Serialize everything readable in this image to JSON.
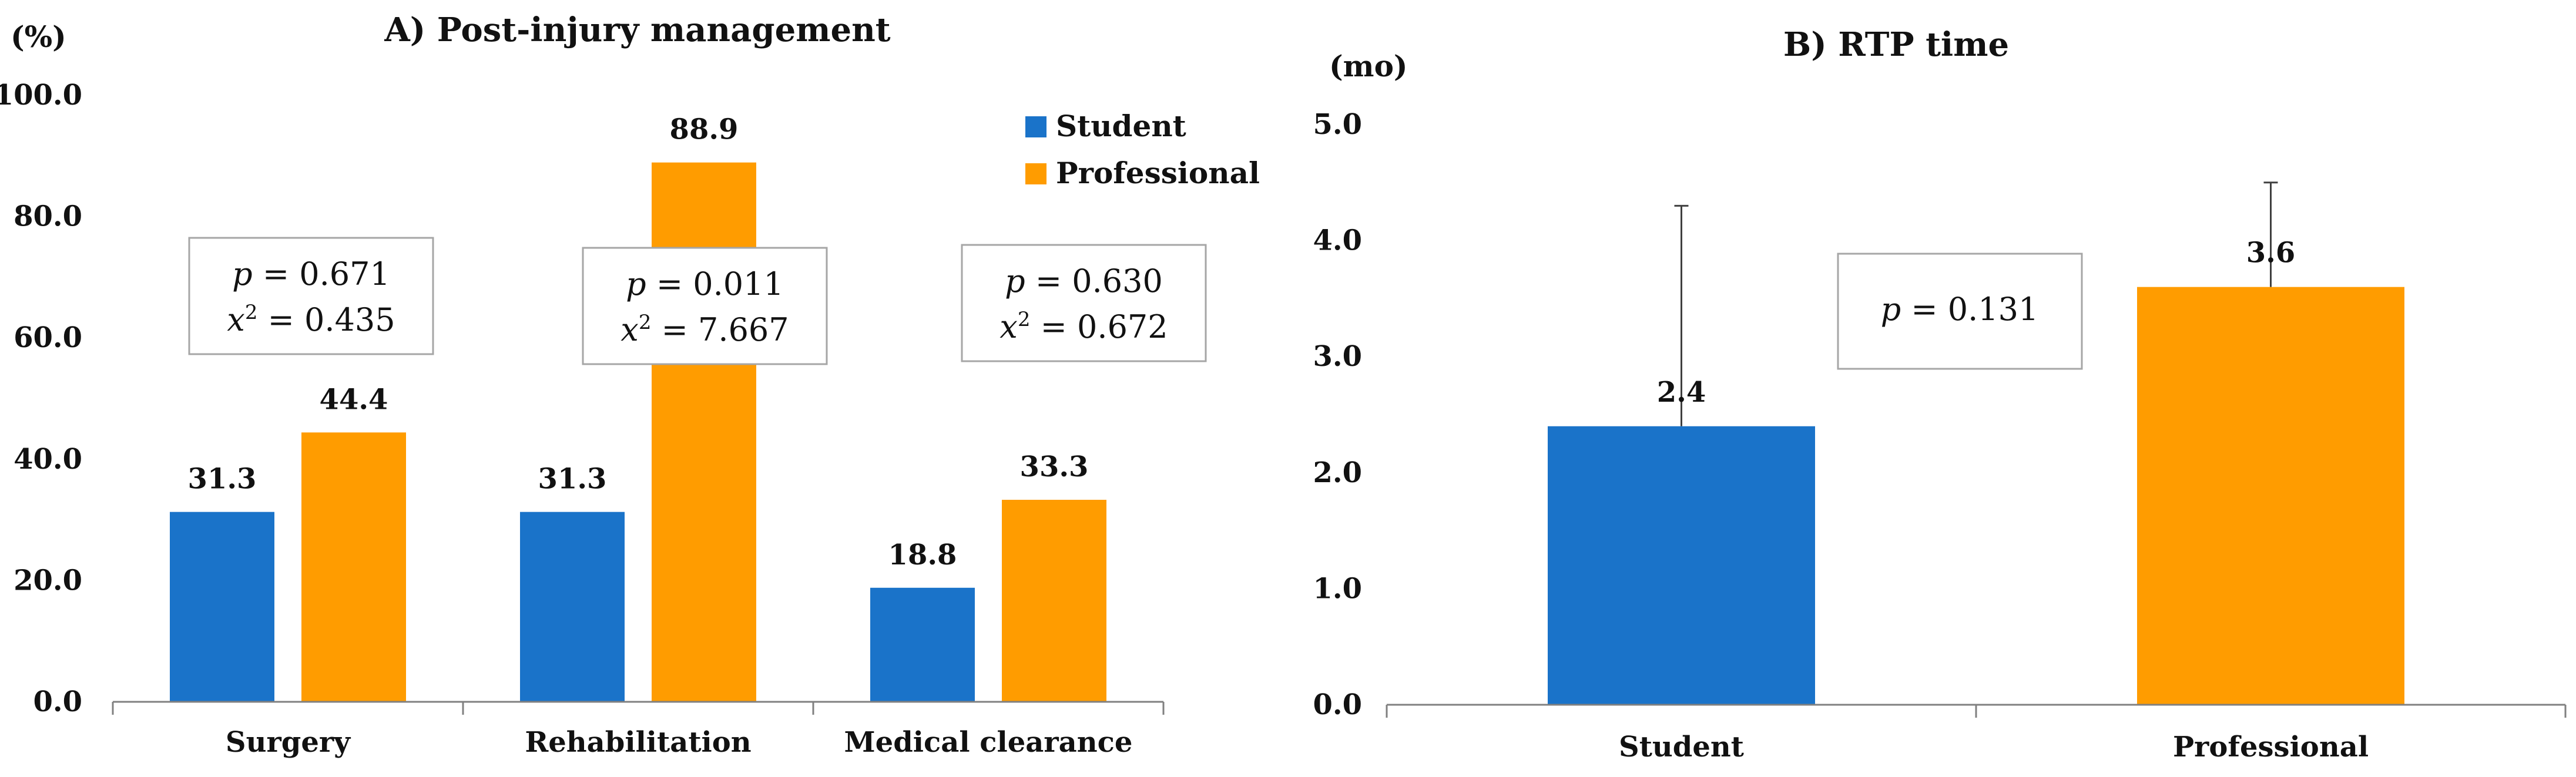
{
  "colors": {
    "student": "#1a73c9",
    "professional": "#ff9c00"
  },
  "chart_data": [
    {
      "type": "bar",
      "title": "A) Post-injury management",
      "ylabel": "(%)",
      "ylim": [
        0,
        100
      ],
      "yticks": [
        "0.0",
        "20.0",
        "40.0",
        "60.0",
        "80.0",
        "100.0"
      ],
      "categories": [
        "Surgery",
        "Rehabilitation",
        "Medical clearance"
      ],
      "series": [
        {
          "name": "Student",
          "values": [
            31.3,
            31.3,
            18.8
          ],
          "labels": [
            "31.3",
            "31.3",
            "18.8"
          ]
        },
        {
          "name": "Professional",
          "values": [
            44.4,
            88.9,
            33.3
          ],
          "labels": [
            "44.4",
            "88.9",
            "33.3"
          ]
        }
      ],
      "legend": [
        "Student",
        "Professional"
      ],
      "annotations": [
        {
          "p": "= 0.671",
          "chi": "= 0.435"
        },
        {
          "p": "= 0.011",
          "chi": "= 7.667"
        },
        {
          "p": "= 0.630",
          "chi": "= 0.672"
        }
      ]
    },
    {
      "type": "bar",
      "title": "B) RTP time",
      "ylabel": "(mo)",
      "ylim": [
        0,
        5
      ],
      "yticks": [
        "0.0",
        "1.0",
        "2.0",
        "3.0",
        "4.0",
        "5.0"
      ],
      "categories": [
        "Student",
        "Professional"
      ],
      "values": [
        2.4,
        3.6
      ],
      "labels": [
        "2.4",
        "3.6"
      ],
      "error_upper": [
        4.3,
        4.5
      ],
      "annotation": {
        "p": "= 0.131"
      }
    }
  ]
}
